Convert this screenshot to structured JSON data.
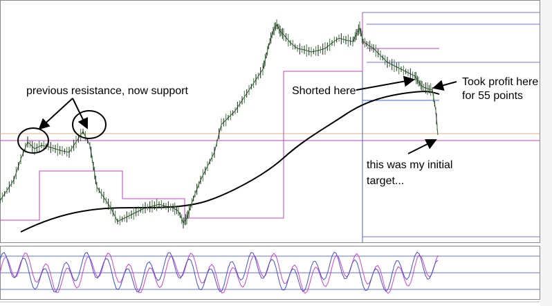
{
  "annotations": {
    "support": "previous resistance, now support",
    "shorted": "Shorted here",
    "profit": [
      "Took profit here",
      "for 55 points"
    ],
    "target": [
      "this was my initial",
      "target..."
    ]
  }
}
